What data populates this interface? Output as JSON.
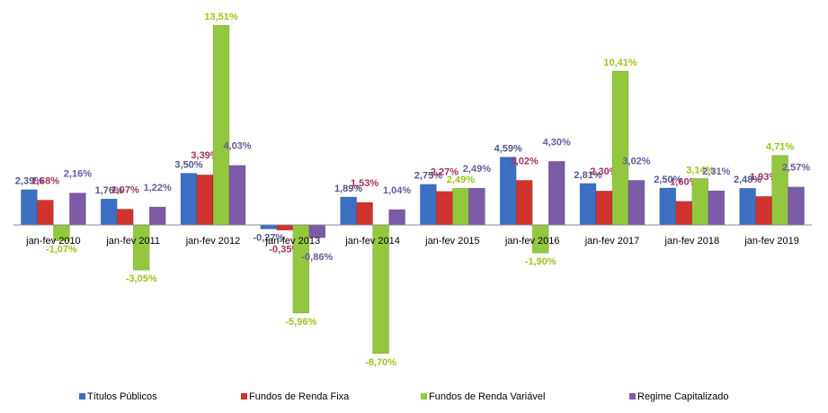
{
  "chart_data": {
    "type": "bar",
    "categories": [
      "jan-fev 2010",
      "jan-fev 2011",
      "jan-fev 2012",
      "jan-fev 2013",
      "jan-fev 2014",
      "jan-fev 2015",
      "jan-fev 2016",
      "jan-fev 2017",
      "jan-fev 2018",
      "jan-fev 2019"
    ],
    "series": [
      {
        "name": "Títulos Públicos",
        "color": "#3a6fc4",
        "label_color": "#55558f",
        "values": [
          2.39,
          1.76,
          3.5,
          -0.27,
          1.89,
          2.75,
          4.59,
          2.81,
          2.5,
          2.48
        ],
        "value_labels": [
          "2,39%",
          "1,76%",
          "3,50%",
          "-0,27%",
          "1,89%",
          "2,75%",
          "4,59%",
          "2,81%",
          "2,50%",
          "2,48%"
        ]
      },
      {
        "name": "Fundos de Renda Fixa",
        "color": "#d0322e",
        "label_color": "#a3325a",
        "values": [
          1.68,
          1.07,
          3.39,
          -0.35,
          1.53,
          2.27,
          3.02,
          2.3,
          1.6,
          1.93
        ],
        "value_labels": [
          "1,68%",
          "1,07%",
          "3,39%",
          "-0,35%",
          "1,53%",
          "2,27%",
          "3,02%",
          "2,30%",
          "1,60%",
          "1,93%"
        ]
      },
      {
        "name": "Fundos de Renda Variável",
        "color": "#92c83e",
        "label_color": "#9bc41c",
        "values": [
          -1.07,
          -3.05,
          13.51,
          -5.96,
          -8.7,
          2.49,
          -1.9,
          10.41,
          3.14,
          4.71
        ],
        "value_labels": [
          "-1,07%",
          "-3,05%",
          "13,51%",
          "-5,96%",
          "-8,70%",
          "2,49%",
          "-1,90%",
          "10,41%",
          "3,14%",
          "4,71%"
        ]
      },
      {
        "name": "Regime Capitalizado",
        "color": "#7b5aa6",
        "label_color": "#6a5aa0",
        "values": [
          2.16,
          1.22,
          4.03,
          -0.86,
          1.04,
          2.49,
          4.3,
          3.02,
          2.31,
          2.57
        ],
        "value_labels": [
          "2,16%",
          "1,22%",
          "4,03%",
          "-0,86%",
          "1,04%",
          "2,49%",
          "4,30%",
          "3,02%",
          "2,31%",
          "2,57%"
        ]
      }
    ],
    "legend": "bottom"
  }
}
